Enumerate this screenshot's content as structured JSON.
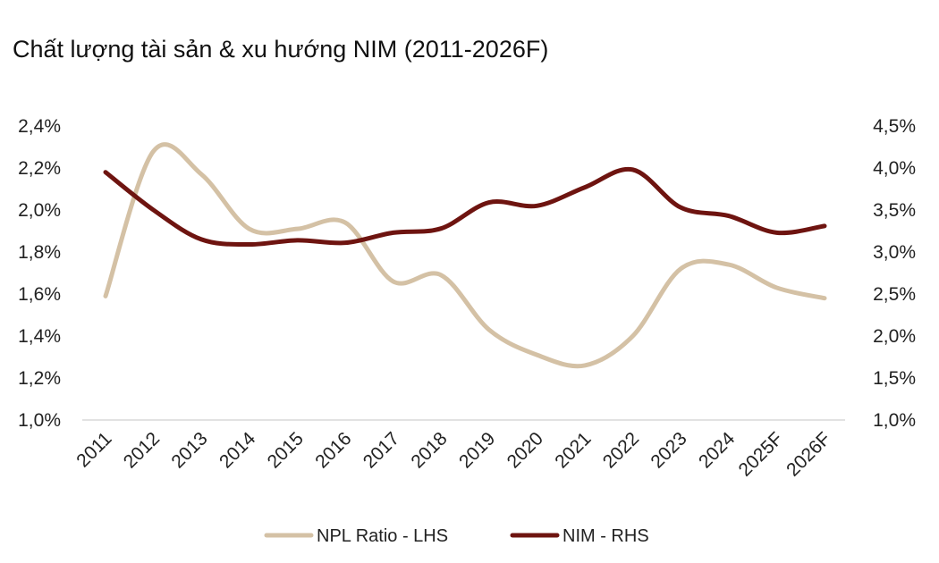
{
  "chart_data": {
    "type": "line",
    "title": "Chất lượng tài sản & xu hướng NIM (2011-2026F)",
    "categories": [
      "2011",
      "2012",
      "2013",
      "2014",
      "2015",
      "2016",
      "2017",
      "2018",
      "2019",
      "2020",
      "2021",
      "2022",
      "2023",
      "2024",
      "2025F",
      "2026F"
    ],
    "left_axis": {
      "ylim": [
        1.0,
        2.4
      ],
      "ticks": [
        "1,0%",
        "1,2%",
        "1,4%",
        "1,6%",
        "1,8%",
        "2,0%",
        "2,2%",
        "2,4%"
      ]
    },
    "right_axis": {
      "ylim": [
        1.0,
        4.5
      ],
      "ticks": [
        "1,0%",
        "1,5%",
        "2,0%",
        "2,5%",
        "3,0%",
        "3,5%",
        "4,0%",
        "4,5%"
      ]
    },
    "series": [
      {
        "name": "NPL Ratio - LHS",
        "axis": "left",
        "color": "#d4c1a5",
        "values": [
          1.59,
          2.28,
          2.17,
          1.91,
          1.91,
          1.94,
          1.66,
          1.69,
          1.43,
          1.31,
          1.26,
          1.4,
          1.72,
          1.74,
          1.63,
          1.58
        ]
      },
      {
        "name": "NIM - RHS",
        "axis": "right",
        "color": "#6e1410",
        "values": [
          3.95,
          3.5,
          3.15,
          3.09,
          3.14,
          3.11,
          3.23,
          3.28,
          3.59,
          3.55,
          3.77,
          3.98,
          3.53,
          3.43,
          3.23,
          3.31
        ]
      }
    ],
    "grid": false,
    "legend": "bottom"
  }
}
